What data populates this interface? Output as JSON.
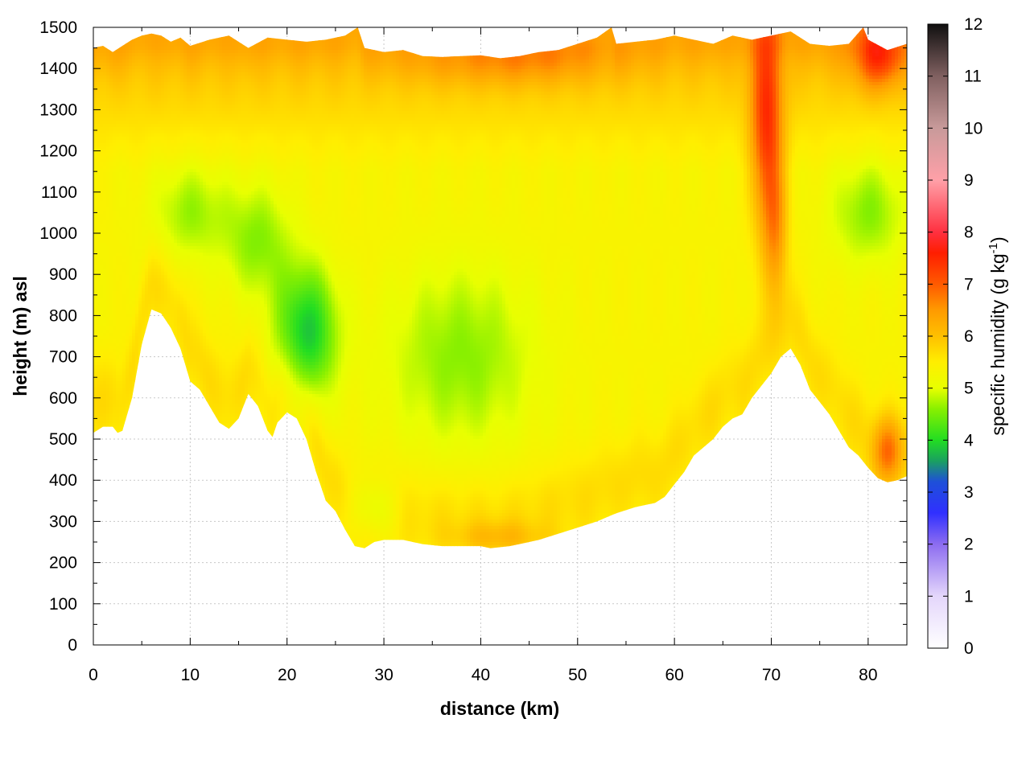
{
  "chart_data": {
    "type": "heatmap",
    "xlabel": "distance (km)",
    "ylabel": "height (m) asl",
    "xlim": [
      0,
      84
    ],
    "ylim": [
      0,
      1500
    ],
    "xticks": [
      "0",
      "10",
      "20",
      "30",
      "40",
      "50",
      "60",
      "70",
      "80"
    ],
    "yticks": [
      "0",
      "100",
      "200",
      "300",
      "400",
      "500",
      "600",
      "700",
      "800",
      "900",
      "1000",
      "1100",
      "1200",
      "1300",
      "1400",
      "1500"
    ],
    "grid": true,
    "colorbar": {
      "label_main": "specific humidity (g kg",
      "label_sup": "-1",
      "label_end": ")",
      "range": [
        0,
        12
      ],
      "ticks": [
        "0",
        "1",
        "2",
        "3",
        "4",
        "5",
        "6",
        "7",
        "8",
        "9",
        "10",
        "11",
        "12"
      ],
      "stops": [
        {
          "v": 0,
          "c": "#ffffff"
        },
        {
          "v": 1,
          "c": "#e4d6fb"
        },
        {
          "v": 2,
          "c": "#8c6cf0"
        },
        {
          "v": 2.6,
          "c": "#3030ff"
        },
        {
          "v": 3.2,
          "c": "#1e50d8"
        },
        {
          "v": 3.6,
          "c": "#1aa060"
        },
        {
          "v": 4,
          "c": "#22dd22"
        },
        {
          "v": 4.6,
          "c": "#88f000"
        },
        {
          "v": 5,
          "c": "#e8ff00"
        },
        {
          "v": 5.5,
          "c": "#ffee00"
        },
        {
          "v": 6,
          "c": "#ffc000"
        },
        {
          "v": 6.5,
          "c": "#ff9a00"
        },
        {
          "v": 7,
          "c": "#ff5a00"
        },
        {
          "v": 7.6,
          "c": "#ff1e00"
        },
        {
          "v": 8,
          "c": "#ff3040"
        },
        {
          "v": 9,
          "c": "#ffa0a8"
        },
        {
          "v": 10,
          "c": "#c89a9a"
        },
        {
          "v": 11,
          "c": "#806060"
        },
        {
          "v": 12,
          "c": "#101010"
        }
      ]
    },
    "terrain_lower": [
      [
        0,
        515
      ],
      [
        1,
        530
      ],
      [
        2,
        530
      ],
      [
        2.5,
        515
      ],
      [
        3,
        520
      ],
      [
        4,
        600
      ],
      [
        5,
        730
      ],
      [
        6,
        815
      ],
      [
        7,
        805
      ],
      [
        8,
        770
      ],
      [
        9,
        720
      ],
      [
        10,
        640
      ],
      [
        11,
        620
      ],
      [
        12,
        580
      ],
      [
        13,
        540
      ],
      [
        14,
        525
      ],
      [
        15,
        550
      ],
      [
        16,
        610
      ],
      [
        17,
        580
      ],
      [
        18,
        520
      ],
      [
        18.5,
        505
      ],
      [
        19,
        540
      ],
      [
        20,
        565
      ],
      [
        21,
        550
      ],
      [
        22,
        500
      ],
      [
        23,
        420
      ],
      [
        24,
        350
      ],
      [
        25,
        325
      ],
      [
        26,
        280
      ],
      [
        27,
        240
      ],
      [
        28,
        235
      ],
      [
        29,
        250
      ],
      [
        30,
        255
      ],
      [
        32,
        255
      ],
      [
        34,
        245
      ],
      [
        36,
        240
      ],
      [
        38,
        240
      ],
      [
        40,
        240
      ],
      [
        41,
        235
      ],
      [
        43,
        240
      ],
      [
        44,
        245
      ],
      [
        46,
        255
      ],
      [
        48,
        270
      ],
      [
        50,
        285
      ],
      [
        52,
        300
      ],
      [
        54,
        320
      ],
      [
        56,
        335
      ],
      [
        58,
        345
      ],
      [
        59,
        360
      ],
      [
        60,
        390
      ],
      [
        61,
        420
      ],
      [
        62,
        460
      ],
      [
        63,
        480
      ],
      [
        64,
        500
      ],
      [
        65,
        530
      ],
      [
        66,
        550
      ],
      [
        67,
        560
      ],
      [
        68,
        600
      ],
      [
        69,
        630
      ],
      [
        70,
        660
      ],
      [
        71,
        700
      ],
      [
        72,
        720
      ],
      [
        73,
        680
      ],
      [
        74,
        620
      ],
      [
        75,
        590
      ],
      [
        76,
        560
      ],
      [
        77,
        520
      ],
      [
        78,
        480
      ],
      [
        79,
        460
      ],
      [
        80,
        430
      ],
      [
        81,
        405
      ],
      [
        82,
        395
      ],
      [
        83,
        400
      ],
      [
        84,
        410
      ]
    ],
    "terrain_upper": [
      [
        0,
        1450
      ],
      [
        1,
        1455
      ],
      [
        2,
        1440
      ],
      [
        3,
        1455
      ],
      [
        4,
        1470
      ],
      [
        5,
        1480
      ],
      [
        6,
        1485
      ],
      [
        7,
        1480
      ],
      [
        8,
        1465
      ],
      [
        9,
        1475
      ],
      [
        10,
        1455
      ],
      [
        12,
        1470
      ],
      [
        14,
        1480
      ],
      [
        16,
        1450
      ],
      [
        18,
        1475
      ],
      [
        20,
        1470
      ],
      [
        22,
        1465
      ],
      [
        24,
        1470
      ],
      [
        26,
        1480
      ],
      [
        27.3,
        1500
      ],
      [
        28,
        1450
      ],
      [
        30,
        1440
      ],
      [
        32,
        1445
      ],
      [
        34,
        1430
      ],
      [
        36,
        1428
      ],
      [
        38,
        1430
      ],
      [
        40,
        1432
      ],
      [
        42,
        1425
      ],
      [
        44,
        1430
      ],
      [
        46,
        1440
      ],
      [
        48,
        1445
      ],
      [
        50,
        1460
      ],
      [
        52,
        1475
      ],
      [
        53.5,
        1500
      ],
      [
        54,
        1460
      ],
      [
        56,
        1465
      ],
      [
        58,
        1470
      ],
      [
        60,
        1480
      ],
      [
        62,
        1470
      ],
      [
        64,
        1460
      ],
      [
        66,
        1480
      ],
      [
        68,
        1470
      ],
      [
        70,
        1480
      ],
      [
        72,
        1490
      ],
      [
        74,
        1460
      ],
      [
        76,
        1455
      ],
      [
        78,
        1460
      ],
      [
        79.5,
        1500
      ],
      [
        80,
        1470
      ],
      [
        82,
        1445
      ],
      [
        84,
        1460
      ]
    ],
    "features": [
      {
        "type": "moist",
        "x": 22,
        "y": 760,
        "sx": 3.2,
        "sy": 160,
        "amp": -1.0
      },
      {
        "type": "moist",
        "x": 17,
        "y": 980,
        "sx": 3.5,
        "sy": 140,
        "amp": -0.5
      },
      {
        "type": "moist",
        "x": 10,
        "y": 1050,
        "sx": 4.0,
        "sy": 120,
        "amp": -0.45
      },
      {
        "type": "moist",
        "x": 38,
        "y": 700,
        "sx": 8.0,
        "sy": 230,
        "amp": -0.5
      },
      {
        "type": "moist",
        "x": 29,
        "y": 330,
        "sx": 2.5,
        "sy": 70,
        "amp": -0.4
      },
      {
        "type": "moist",
        "x": 80,
        "y": 1050,
        "sx": 4.0,
        "sy": 130,
        "amp": -0.5
      },
      {
        "type": "dry",
        "x": 69.5,
        "y": 1250,
        "sx": 1.6,
        "sy": 260,
        "amp": 1.2
      },
      {
        "type": "dry",
        "x": 70.5,
        "y": 1000,
        "sx": 1.2,
        "sy": 180,
        "amp": 0.6
      },
      {
        "type": "dry",
        "x": 81,
        "y": 1430,
        "sx": 2.5,
        "sy": 80,
        "amp": 0.9
      },
      {
        "type": "dry",
        "x": 82,
        "y": 470,
        "sx": 1.5,
        "sy": 80,
        "amp": 0.8
      },
      {
        "type": "dry",
        "x": 42,
        "y": 260,
        "sx": 5.0,
        "sy": 40,
        "amp": 0.35
      },
      {
        "type": "dry",
        "x": 45,
        "y": 1420,
        "sx": 10.0,
        "sy": 60,
        "amp": 0.3
      }
    ]
  }
}
